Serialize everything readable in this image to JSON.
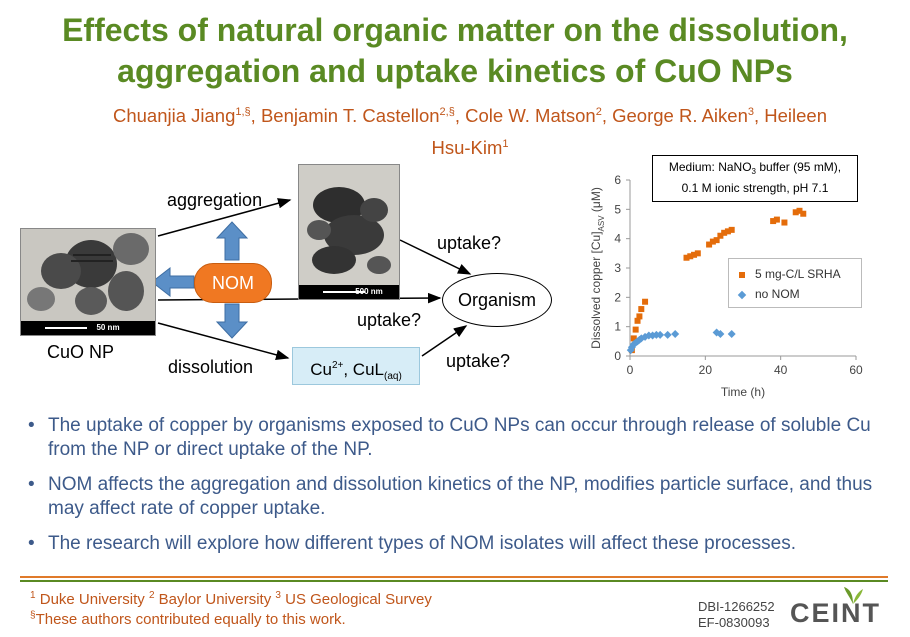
{
  "title": {
    "line1": "Effects of natural organic matter on the dissolution,",
    "line2": "aggregation and uptake kinetics of CuO NPs"
  },
  "authors": {
    "a1_name": "Chuanjia Jiang",
    "a1_sup": "1,§",
    "a2_name": "Benjamin T. Castellon",
    "a2_sup": "2,§",
    "a3_name": "Cole W. Matson",
    "a3_sup": "2",
    "a4_name": "George R. Aiken",
    "a4_sup": "3",
    "a5_name": "Heileen Hsu-Kim",
    "a5_sup": "1"
  },
  "diagram": {
    "cuo_label": "CuO NP",
    "scale1": "50 nm",
    "scale2": "500 nm",
    "aggregation": "aggregation",
    "dissolution": "dissolution",
    "nom": "NOM",
    "uptake_top": "uptake?",
    "uptake_mid": "uptake?",
    "uptake_bottom": "uptake?",
    "organism": "Organism",
    "cu_ion": "Cu",
    "cu_ion_sup": "2+",
    "cu_complex": ", CuL",
    "cu_complex_sub": "(aq)"
  },
  "chart_data": {
    "type": "scatter",
    "annotation_line1": "Medium: NaNO",
    "annotation_sub": "3",
    "annotation_line1_end": " buffer (95 mM),",
    "annotation_line2": "0.1 M ionic strength, pH 7.1",
    "xlabel": "Time (h)",
    "ylabel_main": "Dissolved copper [Cu]",
    "ylabel_sub": "ASV",
    "ylabel_unit": " (μM)",
    "xlim": [
      0,
      60
    ],
    "ylim": [
      0,
      6
    ],
    "xticks": [
      "0",
      "20",
      "40",
      "60"
    ],
    "yticks": [
      "0",
      "1",
      "2",
      "3",
      "4",
      "5",
      "6"
    ],
    "legend_position": "right",
    "series": [
      {
        "name": "5 mg-C/L SRHA",
        "marker": "square",
        "color": "#e46c0a",
        "points": [
          [
            0.5,
            0.2
          ],
          [
            1,
            0.6
          ],
          [
            1.5,
            0.9
          ],
          [
            2,
            1.2
          ],
          [
            2.5,
            1.35
          ],
          [
            3,
            1.6
          ],
          [
            4,
            1.85
          ],
          [
            15,
            3.35
          ],
          [
            16,
            3.4
          ],
          [
            17,
            3.45
          ],
          [
            18,
            3.5
          ],
          [
            21,
            3.8
          ],
          [
            22,
            3.9
          ],
          [
            23,
            3.95
          ],
          [
            24,
            4.1
          ],
          [
            25,
            4.2
          ],
          [
            26,
            4.25
          ],
          [
            27,
            4.3
          ],
          [
            38,
            4.6
          ],
          [
            39,
            4.65
          ],
          [
            41,
            4.55
          ],
          [
            44,
            4.9
          ],
          [
            45,
            4.95
          ],
          [
            46,
            4.85
          ]
        ]
      },
      {
        "name": "no NOM",
        "marker": "diamond",
        "color": "#5b9bd5",
        "points": [
          [
            0.2,
            0.2
          ],
          [
            0.5,
            0.3
          ],
          [
            1,
            0.4
          ],
          [
            1.5,
            0.45
          ],
          [
            2,
            0.5
          ],
          [
            2.5,
            0.55
          ],
          [
            3,
            0.6
          ],
          [
            4,
            0.65
          ],
          [
            5,
            0.7
          ],
          [
            6,
            0.7
          ],
          [
            7,
            0.72
          ],
          [
            8,
            0.72
          ],
          [
            10,
            0.72
          ],
          [
            12,
            0.75
          ],
          [
            23,
            0.8
          ],
          [
            24,
            0.75
          ],
          [
            27,
            0.75
          ]
        ]
      }
    ]
  },
  "bullets": [
    "The uptake of copper by organisms exposed to CuO NPs can occur through release of soluble Cu from the NP or direct uptake of the NP.",
    "NOM affects the aggregation and dissolution kinetics of the NP, modifies particle surface, and thus may affect rate of copper uptake.",
    "The research will explore how different types of NOM isolates will affect these processes."
  ],
  "bullet_symbol": "•",
  "footer": {
    "aff1_sup": "1",
    "aff1": "Duke University",
    "aff2_sup": "2",
    "aff2": "Baylor University",
    "aff3_sup": "3",
    "aff3": "US Geological Survey",
    "note_sup": "§",
    "note": "These authors contributed equally to this work.",
    "grant1": "DBI-1266252",
    "grant2": "EF-0830093",
    "logo": "CEINT"
  },
  "colors": {
    "title": "#5a8a23",
    "authors": "#c0561b",
    "bullets": "#3d5a8a",
    "nom_fill": "#f07822",
    "arrow_blue": "#5b8fc7"
  }
}
